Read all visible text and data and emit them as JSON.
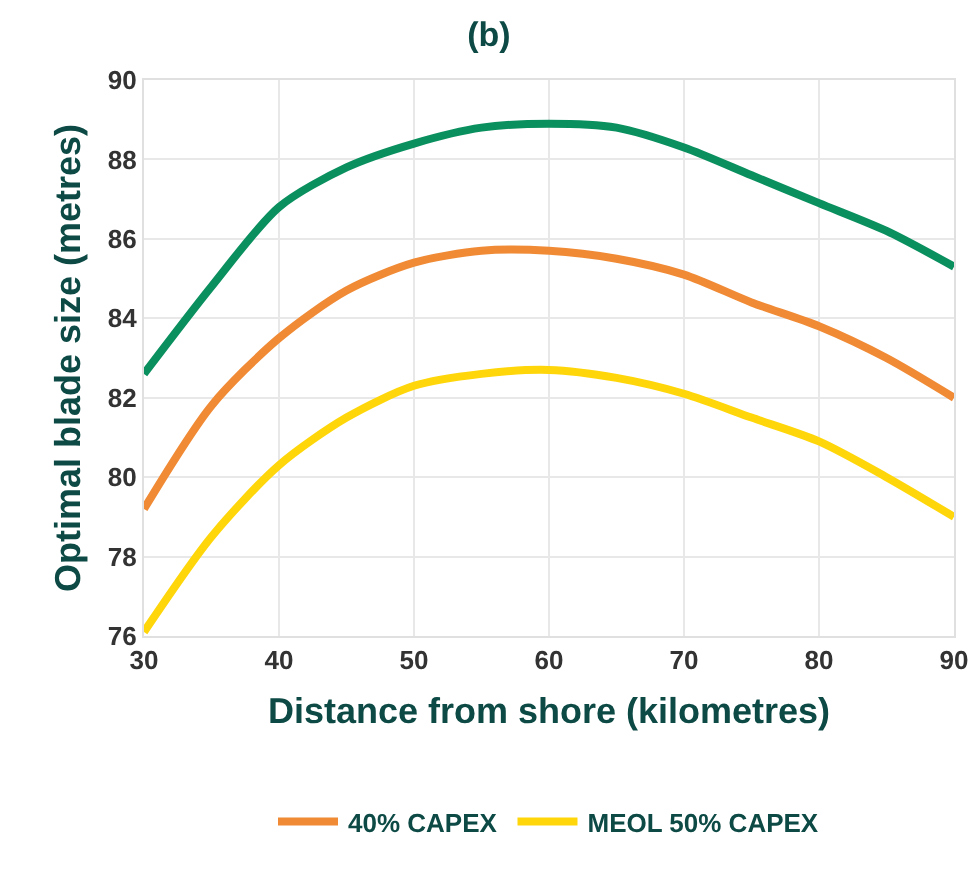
{
  "chart_data": {
    "type": "line",
    "title": "(b)",
    "xlabel": "Distance from shore (kilometres)",
    "ylabel": "Optimal blade size (metres)",
    "x": [
      30,
      35,
      40,
      45,
      50,
      55,
      60,
      65,
      70,
      75,
      80,
      85,
      90
    ],
    "series": [
      {
        "color": "#0a8f5f",
        "values": [
          82.6,
          84.8,
          86.8,
          87.8,
          88.4,
          88.8,
          88.9,
          88.8,
          88.3,
          87.6,
          86.9,
          86.2,
          85.3
        ]
      },
      {
        "name": "40% CAPEX",
        "color": "#f08a35",
        "values": [
          79.2,
          81.8,
          83.5,
          84.7,
          85.4,
          85.7,
          85.7,
          85.5,
          85.1,
          84.4,
          83.8,
          83.0,
          82.0
        ]
      },
      {
        "name": "MEOL 50% CAPEX",
        "color": "#ffd60a",
        "values": [
          76.1,
          78.5,
          80.3,
          81.5,
          82.3,
          82.6,
          82.7,
          82.5,
          82.1,
          81.5,
          80.9,
          80.0,
          79.0
        ]
      }
    ],
    "xlim": [
      30,
      90
    ],
    "xticks": [
      30,
      40,
      50,
      60,
      70,
      80,
      90
    ],
    "ylim": [
      76,
      90
    ],
    "yticks": [
      76,
      78,
      80,
      82,
      84,
      86,
      88,
      90
    ],
    "grid": true,
    "legend": "bottom",
    "marker": "none",
    "line_style": "solid"
  }
}
